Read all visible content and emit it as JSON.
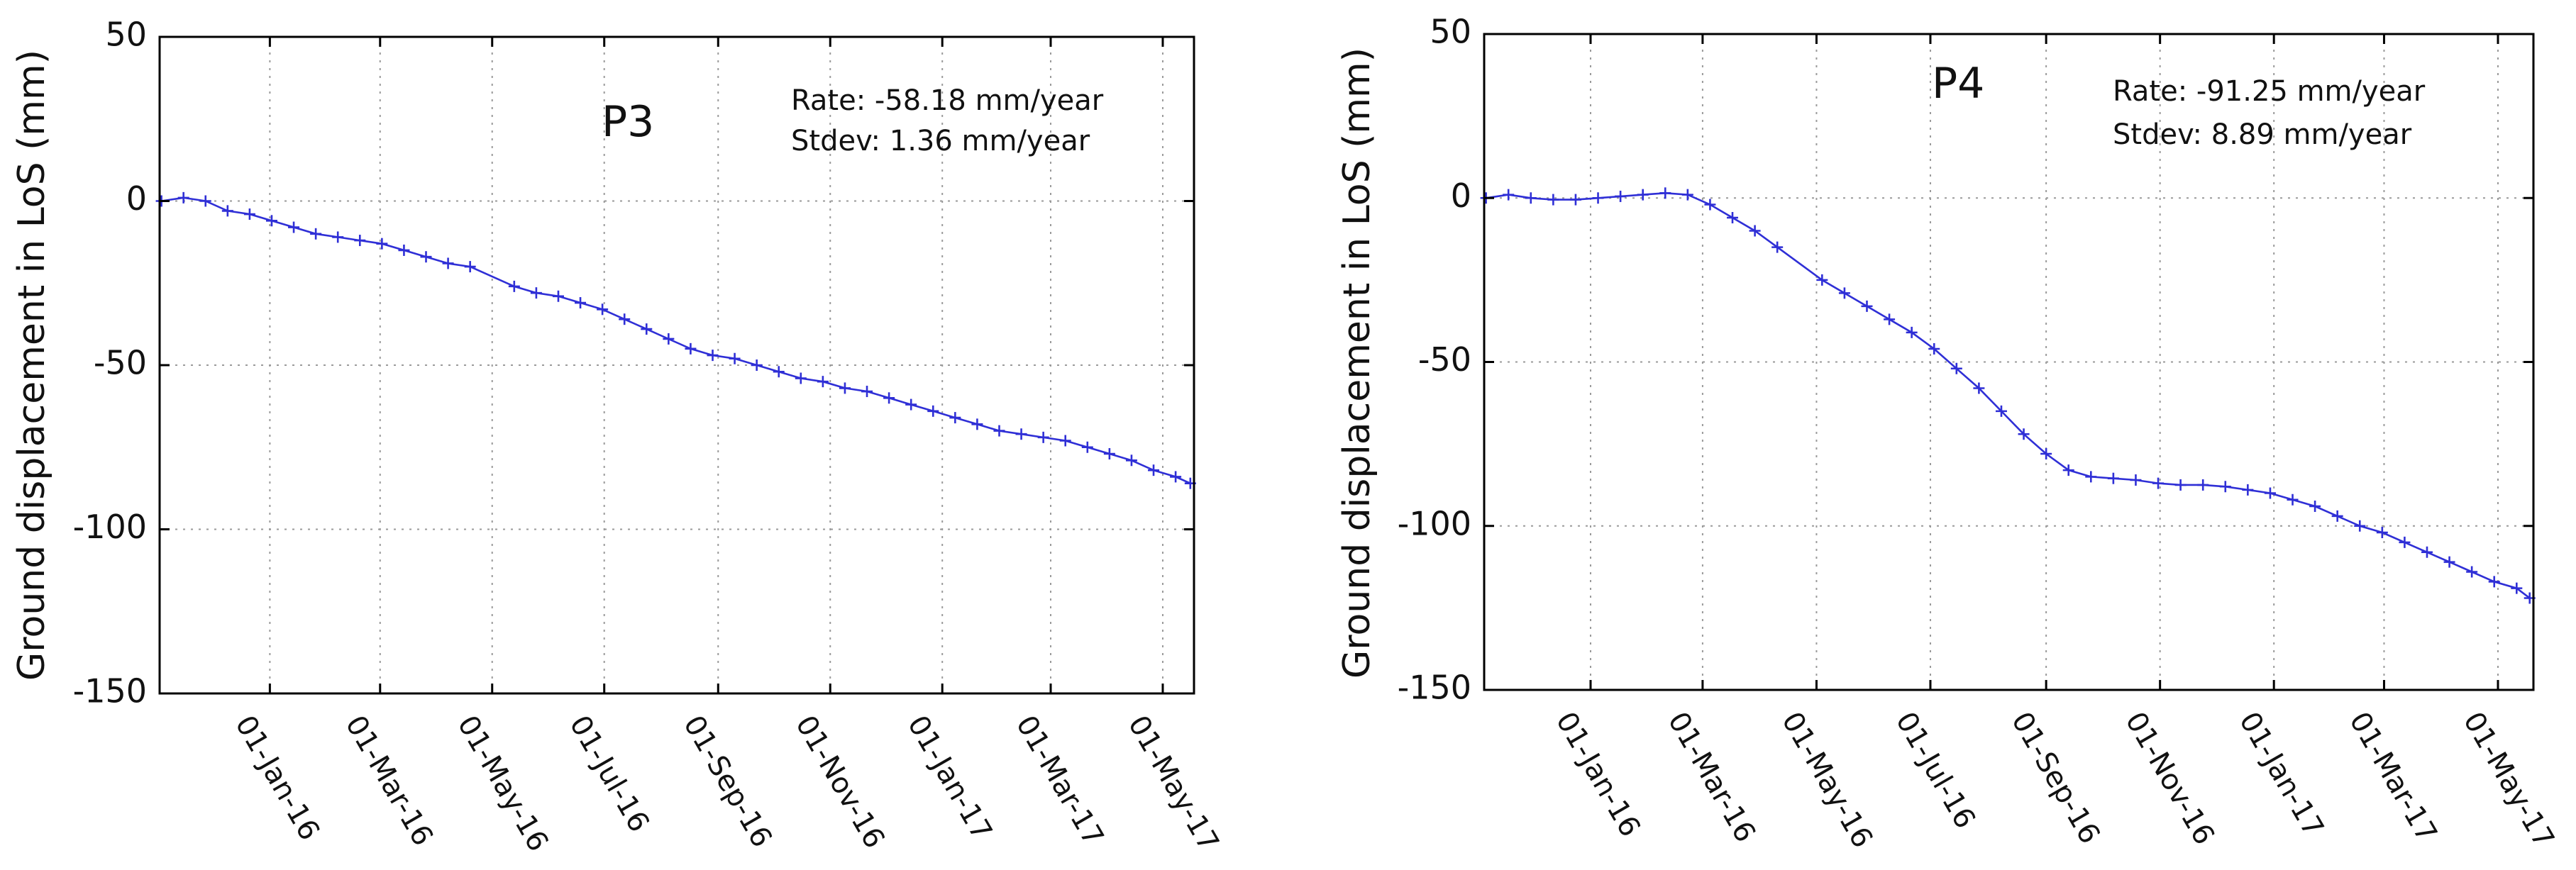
{
  "colors": {
    "series": "#2f2fd6",
    "grid": "#9a9a9a",
    "axis": "#000000"
  },
  "chart_data": [
    {
      "type": "line",
      "title": "P3",
      "ylabel": "Ground displacement in LoS  (mm)",
      "xlabel": "",
      "ylim": [
        -150,
        50
      ],
      "yticks": [
        50,
        0,
        -50,
        -100,
        -150
      ],
      "xlim": [
        "2015-11-02",
        "2017-05-18"
      ],
      "xticks": [
        "2016-01-01",
        "2016-03-01",
        "2016-05-01",
        "2016-07-01",
        "2016-09-01",
        "2016-11-01",
        "2017-01-01",
        "2017-03-01",
        "2017-05-01"
      ],
      "xtick_labels": [
        "01-Jan-16",
        "01-Mar-16",
        "01-May-16",
        "01-Jul-16",
        "01-Sep-16",
        "01-Nov-16",
        "01-Jan-17",
        "01-Mar-17",
        "01-May-17"
      ],
      "grid": true,
      "annotations": [
        "Rate: -58.18 mm/year",
        "Stdev: 1.36  mm/year"
      ],
      "series": [
        {
          "x": [
            "2015-11-03",
            "2015-11-15",
            "2015-11-27",
            "2015-12-09",
            "2015-12-21",
            "2016-01-02",
            "2016-01-14",
            "2016-01-26",
            "2016-02-07",
            "2016-02-19",
            "2016-03-02",
            "2016-03-14",
            "2016-03-26",
            "2016-04-07",
            "2016-04-19",
            "2016-05-13",
            "2016-05-25",
            "2016-06-06",
            "2016-06-18",
            "2016-06-30",
            "2016-07-12",
            "2016-07-24",
            "2016-08-05",
            "2016-08-17",
            "2016-08-29",
            "2016-09-10",
            "2016-09-22",
            "2016-10-04",
            "2016-10-16",
            "2016-10-28",
            "2016-11-09",
            "2016-11-21",
            "2016-12-03",
            "2016-12-15",
            "2016-12-27",
            "2017-01-08",
            "2017-01-20",
            "2017-02-01",
            "2017-02-13",
            "2017-02-25",
            "2017-03-09",
            "2017-03-21",
            "2017-04-02",
            "2017-04-14",
            "2017-04-26",
            "2017-05-08",
            "2017-05-16"
          ],
          "y": [
            0,
            1,
            0,
            -3,
            -4,
            -6,
            -8,
            -10,
            -11,
            -12,
            -13,
            -15,
            -17,
            -19,
            -20,
            -26,
            -28,
            -29,
            -31,
            -33,
            -36,
            -39,
            -42,
            -45,
            -47,
            -48,
            -50,
            -52,
            -54,
            -55,
            -57,
            -58,
            -60,
            -62,
            -64,
            -66,
            -68,
            -70,
            -71,
            -72,
            -73,
            -75,
            -77,
            -79,
            -82,
            -84,
            -86
          ]
        }
      ]
    },
    {
      "type": "line",
      "title": "P4",
      "ylabel": "Ground displacement in LoS  (mm)",
      "xlabel": "",
      "ylim": [
        -150,
        50
      ],
      "yticks": [
        50,
        0,
        -50,
        -100,
        -150
      ],
      "xlim": [
        "2015-11-05",
        "2017-05-20"
      ],
      "xticks": [
        "2016-01-01",
        "2016-03-01",
        "2016-05-01",
        "2016-07-01",
        "2016-09-01",
        "2016-11-01",
        "2017-01-01",
        "2017-03-01",
        "2017-05-01"
      ],
      "xtick_labels": [
        "01-Jan-16",
        "01-Mar-16",
        "01-May-16",
        "01-Jul-16",
        "01-Sep-16",
        "01-Nov-16",
        "01-Jan-17",
        "01-Mar-17",
        "01-May-17"
      ],
      "grid": true,
      "annotations": [
        "Rate:  -91.25 mm/year",
        "Stdev:  8.89   mm/year"
      ],
      "series": [
        {
          "x": [
            "2015-11-06",
            "2015-11-18",
            "2015-11-30",
            "2015-12-12",
            "2015-12-24",
            "2016-01-05",
            "2016-01-17",
            "2016-01-29",
            "2016-02-10",
            "2016-02-22",
            "2016-03-05",
            "2016-03-17",
            "2016-03-29",
            "2016-04-10",
            "2016-05-04",
            "2016-05-16",
            "2016-05-28",
            "2016-06-09",
            "2016-06-21",
            "2016-07-03",
            "2016-07-15",
            "2016-07-27",
            "2016-08-08",
            "2016-08-20",
            "2016-09-01",
            "2016-09-13",
            "2016-09-25",
            "2016-10-07",
            "2016-10-19",
            "2016-10-31",
            "2016-11-12",
            "2016-11-24",
            "2016-12-06",
            "2016-12-18",
            "2016-12-30",
            "2017-01-11",
            "2017-01-23",
            "2017-02-04",
            "2017-02-16",
            "2017-02-28",
            "2017-03-12",
            "2017-03-24",
            "2017-04-05",
            "2017-04-17",
            "2017-04-29",
            "2017-05-11",
            "2017-05-18"
          ],
          "y": [
            0,
            1,
            0,
            -0.5,
            -0.5,
            0,
            0.5,
            1,
            1.5,
            1,
            -2,
            -6,
            -10,
            -15,
            -25,
            -29,
            -33,
            -37,
            -41,
            -46,
            -52,
            -58,
            -65,
            -72,
            -78,
            -83,
            -85,
            -85.5,
            -86,
            -87,
            -87.5,
            -87.5,
            -88,
            -89,
            -90,
            -92,
            -94,
            -97,
            -100,
            -102,
            -105,
            -108,
            -111,
            -114,
            -117,
            -119,
            -122
          ]
        }
      ]
    }
  ]
}
